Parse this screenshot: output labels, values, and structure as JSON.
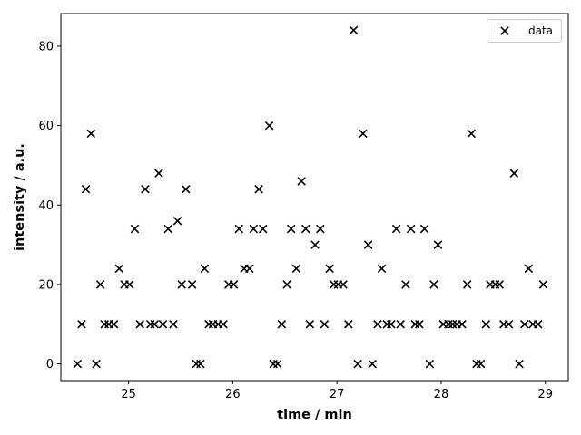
{
  "chart_data": {
    "type": "scatter",
    "title": "",
    "xlabel": "time / min",
    "ylabel": "intensity / a.u.",
    "xlim": [
      24.35,
      29.22
    ],
    "ylim": [
      -4.2,
      88.2
    ],
    "xticks": [
      25,
      26,
      27,
      28,
      29
    ],
    "yticks": [
      0,
      20,
      40,
      60,
      80
    ],
    "grid": false,
    "legend": {
      "position": "top-right",
      "entries": [
        "data"
      ]
    },
    "marker": "x",
    "series": [
      {
        "name": "data",
        "color": "#000000",
        "points": [
          [
            24.51,
            0
          ],
          [
            24.55,
            10
          ],
          [
            24.59,
            44
          ],
          [
            24.64,
            58
          ],
          [
            24.69,
            0
          ],
          [
            24.73,
            20
          ],
          [
            24.77,
            10
          ],
          [
            24.81,
            10
          ],
          [
            24.86,
            10
          ],
          [
            24.91,
            24
          ],
          [
            24.96,
            20
          ],
          [
            25.01,
            20
          ],
          [
            25.06,
            34
          ],
          [
            25.11,
            10
          ],
          [
            25.16,
            44
          ],
          [
            25.21,
            10
          ],
          [
            25.25,
            10
          ],
          [
            25.29,
            48
          ],
          [
            25.33,
            10
          ],
          [
            25.38,
            34
          ],
          [
            25.43,
            10
          ],
          [
            25.47,
            36
          ],
          [
            25.51,
            20
          ],
          [
            25.55,
            44
          ],
          [
            25.61,
            20
          ],
          [
            25.65,
            0
          ],
          [
            25.69,
            0
          ],
          [
            25.73,
            24
          ],
          [
            25.77,
            10
          ],
          [
            25.81,
            10
          ],
          [
            25.86,
            10
          ],
          [
            25.91,
            10
          ],
          [
            25.96,
            20
          ],
          [
            26.01,
            20
          ],
          [
            26.06,
            34
          ],
          [
            26.11,
            24
          ],
          [
            26.16,
            24
          ],
          [
            26.2,
            34
          ],
          [
            26.25,
            44
          ],
          [
            26.29,
            34
          ],
          [
            26.35,
            60
          ],
          [
            26.39,
            0
          ],
          [
            26.43,
            0
          ],
          [
            26.47,
            10
          ],
          [
            26.52,
            20
          ],
          [
            26.56,
            34
          ],
          [
            26.61,
            24
          ],
          [
            26.66,
            46
          ],
          [
            26.7,
            34
          ],
          [
            26.74,
            10
          ],
          [
            26.79,
            30
          ],
          [
            26.84,
            34
          ],
          [
            26.88,
            10
          ],
          [
            26.93,
            24
          ],
          [
            26.97,
            20
          ],
          [
            27.01,
            20
          ],
          [
            27.06,
            20
          ],
          [
            27.11,
            10
          ],
          [
            27.16,
            84
          ],
          [
            27.2,
            0
          ],
          [
            27.25,
            58
          ],
          [
            27.3,
            30
          ],
          [
            27.34,
            0
          ],
          [
            27.39,
            10
          ],
          [
            27.43,
            24
          ],
          [
            27.48,
            10
          ],
          [
            27.52,
            10
          ],
          [
            27.57,
            34
          ],
          [
            27.61,
            10
          ],
          [
            27.66,
            20
          ],
          [
            27.71,
            34
          ],
          [
            27.75,
            10
          ],
          [
            27.79,
            10
          ],
          [
            27.84,
            34
          ],
          [
            27.89,
            0
          ],
          [
            27.93,
            20
          ],
          [
            27.97,
            30
          ],
          [
            28.02,
            10
          ],
          [
            28.07,
            10
          ],
          [
            28.11,
            10
          ],
          [
            28.15,
            10
          ],
          [
            28.2,
            10
          ],
          [
            28.25,
            20
          ],
          [
            28.29,
            58
          ],
          [
            28.34,
            0
          ],
          [
            28.38,
            0
          ],
          [
            28.43,
            10
          ],
          [
            28.47,
            20
          ],
          [
            28.52,
            20
          ],
          [
            28.56,
            20
          ],
          [
            28.6,
            10
          ],
          [
            28.65,
            10
          ],
          [
            28.7,
            48
          ],
          [
            28.75,
            0
          ],
          [
            28.8,
            10
          ],
          [
            28.84,
            24
          ],
          [
            28.88,
            10
          ],
          [
            28.93,
            10
          ],
          [
            28.98,
            20
          ]
        ]
      }
    ]
  }
}
